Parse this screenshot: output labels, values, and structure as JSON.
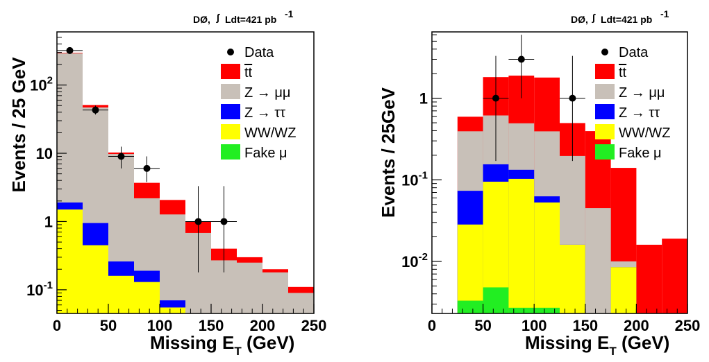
{
  "chart_data": [
    {
      "type": "histogram",
      "header": {
        "prefix": "DØ,",
        "integral": "Ldt=421 pb",
        "sup": "-1"
      },
      "xlabel": "Missing E",
      "xlabel_sub": "T",
      "xlabel_suffix": " (GeV)",
      "ylabel": "Events / 25 GeV",
      "xlim": [
        0,
        250
      ],
      "ylim": [
        0.045,
        600
      ],
      "yscale": "log",
      "x_ticks": [
        "0",
        "50",
        "100",
        "150",
        "200",
        "250"
      ],
      "x_tick_values": [
        0,
        50,
        100,
        150,
        200,
        250
      ],
      "y_ticks": [
        {
          "value": 0.1,
          "base": "10",
          "exp": "-1"
        },
        {
          "value": 1,
          "base": "1",
          "exp": ""
        },
        {
          "value": 10,
          "base": "10",
          "exp": ""
        },
        {
          "value": 100,
          "base": "10",
          "exp": "2"
        }
      ],
      "bin_edges": [
        0,
        25,
        50,
        75,
        100,
        125,
        150,
        175,
        200,
        225,
        250
      ],
      "stack": [
        {
          "name": "Fake μ",
          "color": "#22ee22",
          "values": [
            0,
            0,
            0,
            0,
            0,
            0,
            0,
            0,
            0,
            0
          ]
        },
        {
          "name": "WW/WZ",
          "color": "#ffff00",
          "values": [
            1.5,
            0.45,
            0.16,
            0.13,
            0.055,
            0,
            0,
            0,
            0,
            0
          ]
        },
        {
          "name": "Z → ττ",
          "color": "#0000ff",
          "values": [
            0.4,
            0.5,
            0.1,
            0.06,
            0.015,
            0,
            0,
            0,
            0,
            0
          ]
        },
        {
          "name": "Z → μμ",
          "color": "#c8c0b8",
          "values": [
            290,
            46,
            9.5,
            2.0,
            1.2,
            0.68,
            0.27,
            0.25,
            0.18,
            0.09
          ]
        },
        {
          "name": "tt",
          "color": "#ff0000",
          "values": [
            5,
            4,
            0.5,
            1.5,
            0.8,
            0.32,
            0.13,
            0.05,
            0.02,
            0.02
          ]
        }
      ],
      "data_points": [
        {
          "x": 12.5,
          "y": 320,
          "ylow": 300,
          "yhigh": 340,
          "xerr": 12.5
        },
        {
          "x": 37.5,
          "y": 43,
          "ylow": 37,
          "yhigh": 50,
          "xerr": 12.5
        },
        {
          "x": 62.5,
          "y": 9,
          "ylow": 6,
          "yhigh": 12.5,
          "xerr": 12.5
        },
        {
          "x": 87.5,
          "y": 6,
          "ylow": 3.8,
          "yhigh": 9,
          "xerr": 12.5
        },
        {
          "x": 137.5,
          "y": 1,
          "ylow": 0.18,
          "yhigh": 3.3,
          "xerr": 12.5
        },
        {
          "x": 162.5,
          "y": 1,
          "ylow": 0.18,
          "yhigh": 3.3,
          "xerr": 12.5
        }
      ]
    },
    {
      "type": "histogram",
      "header": {
        "prefix": "DØ,",
        "integral": "Ldt=421 pb",
        "sup": "-1"
      },
      "xlabel": "Missing E",
      "xlabel_sub": "T",
      "xlabel_suffix": " (GeV)",
      "ylabel": "Events / 25GeV",
      "xlim": [
        0,
        250
      ],
      "ylim": [
        0.0023,
        6.5
      ],
      "yscale": "log",
      "x_ticks": [
        "0",
        "50",
        "100",
        "150",
        "200",
        "250"
      ],
      "x_tick_values": [
        0,
        50,
        100,
        150,
        200,
        250
      ],
      "y_ticks": [
        {
          "value": 0.01,
          "base": "10",
          "exp": "-2"
        },
        {
          "value": 0.1,
          "base": "10",
          "exp": "-1"
        },
        {
          "value": 1,
          "base": "1",
          "exp": ""
        }
      ],
      "bin_edges": [
        25,
        50,
        75,
        100,
        125,
        150,
        175,
        200,
        225,
        250
      ],
      "stack": [
        {
          "name": "Fake μ",
          "color": "#22ee22",
          "values": [
            0.0033,
            0.0048,
            0.0027,
            0.0027,
            0,
            0,
            0,
            0,
            0
          ]
        },
        {
          "name": "WW/WZ",
          "color": "#ffff00",
          "values": [
            0.025,
            0.09,
            0.1,
            0.05,
            0.016,
            0,
            0.0085,
            0,
            0
          ]
        },
        {
          "name": "Z → ττ",
          "color": "#0000ff",
          "values": [
            0.045,
            0.06,
            0.03,
            0.01,
            0,
            0,
            0,
            0,
            0
          ]
        },
        {
          "name": "Z → μμ",
          "color": "#c8c0b8",
          "values": [
            0.32,
            0.46,
            0.36,
            0.33,
            0.18,
            0.045,
            0.0015,
            0,
            0
          ]
        },
        {
          "name": "tt",
          "color": "#ff0000",
          "values": [
            0.2,
            1.2,
            1.4,
            1.4,
            0.3,
            0.35,
            0.13,
            0.016,
            0.019
          ]
        }
      ],
      "data_points": [
        {
          "x": 62.5,
          "y": 1,
          "ylow": 0.17,
          "yhigh": 3.3,
          "xerr": 12.5
        },
        {
          "x": 87.5,
          "y": 3,
          "ylow": 1.0,
          "yhigh": 6.0,
          "xerr": 12.5
        },
        {
          "x": 137.5,
          "y": 1,
          "ylow": 0.17,
          "yhigh": 3.3,
          "xerr": 12.5
        }
      ]
    }
  ],
  "legend": [
    {
      "type": "marker",
      "label": "Data",
      "color": "#000000"
    },
    {
      "type": "box",
      "label": "tt",
      "overline": true,
      "color": "#ff0000"
    },
    {
      "type": "box",
      "label": "Z → μμ",
      "color": "#c8c0b8"
    },
    {
      "type": "box",
      "label": "Z → ττ",
      "color": "#0000ff"
    },
    {
      "type": "box",
      "label": "WW/WZ",
      "color": "#ffff00"
    },
    {
      "type": "box",
      "label": "Fake μ",
      "color": "#22ee22"
    }
  ]
}
